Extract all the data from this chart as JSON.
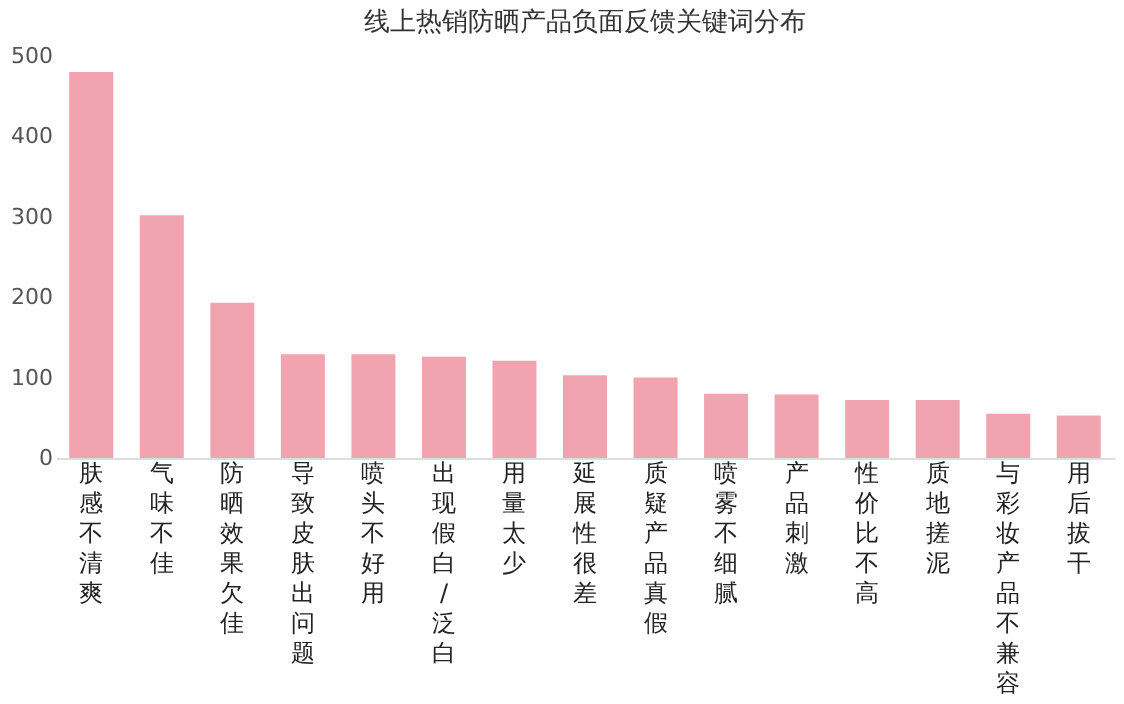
{
  "chart_data": {
    "type": "bar",
    "title": "线上热销防晒产品负面反馈关键词分布",
    "categories": [
      "肤感不清爽",
      "气味不佳",
      "防晒效果欠佳",
      "导致皮肤出问题",
      "喷头不好用",
      "出现假白/泛白",
      "用量太少",
      "延展性很差",
      "质疑产品真假",
      "喷雾不细腻",
      "产品刺激",
      "性价比不高",
      "质地搓泥",
      "与彩妆产品不兼容",
      "用后拔干"
    ],
    "values": [
      480,
      302,
      193,
      129,
      129,
      126,
      121,
      103,
      100,
      80,
      79,
      72,
      72,
      55,
      53
    ],
    "color": "#f2a3b0",
    "ylim": [
      0,
      500
    ],
    "yticks": [
      0,
      100,
      200,
      300,
      400,
      500
    ],
    "grid": false
  }
}
